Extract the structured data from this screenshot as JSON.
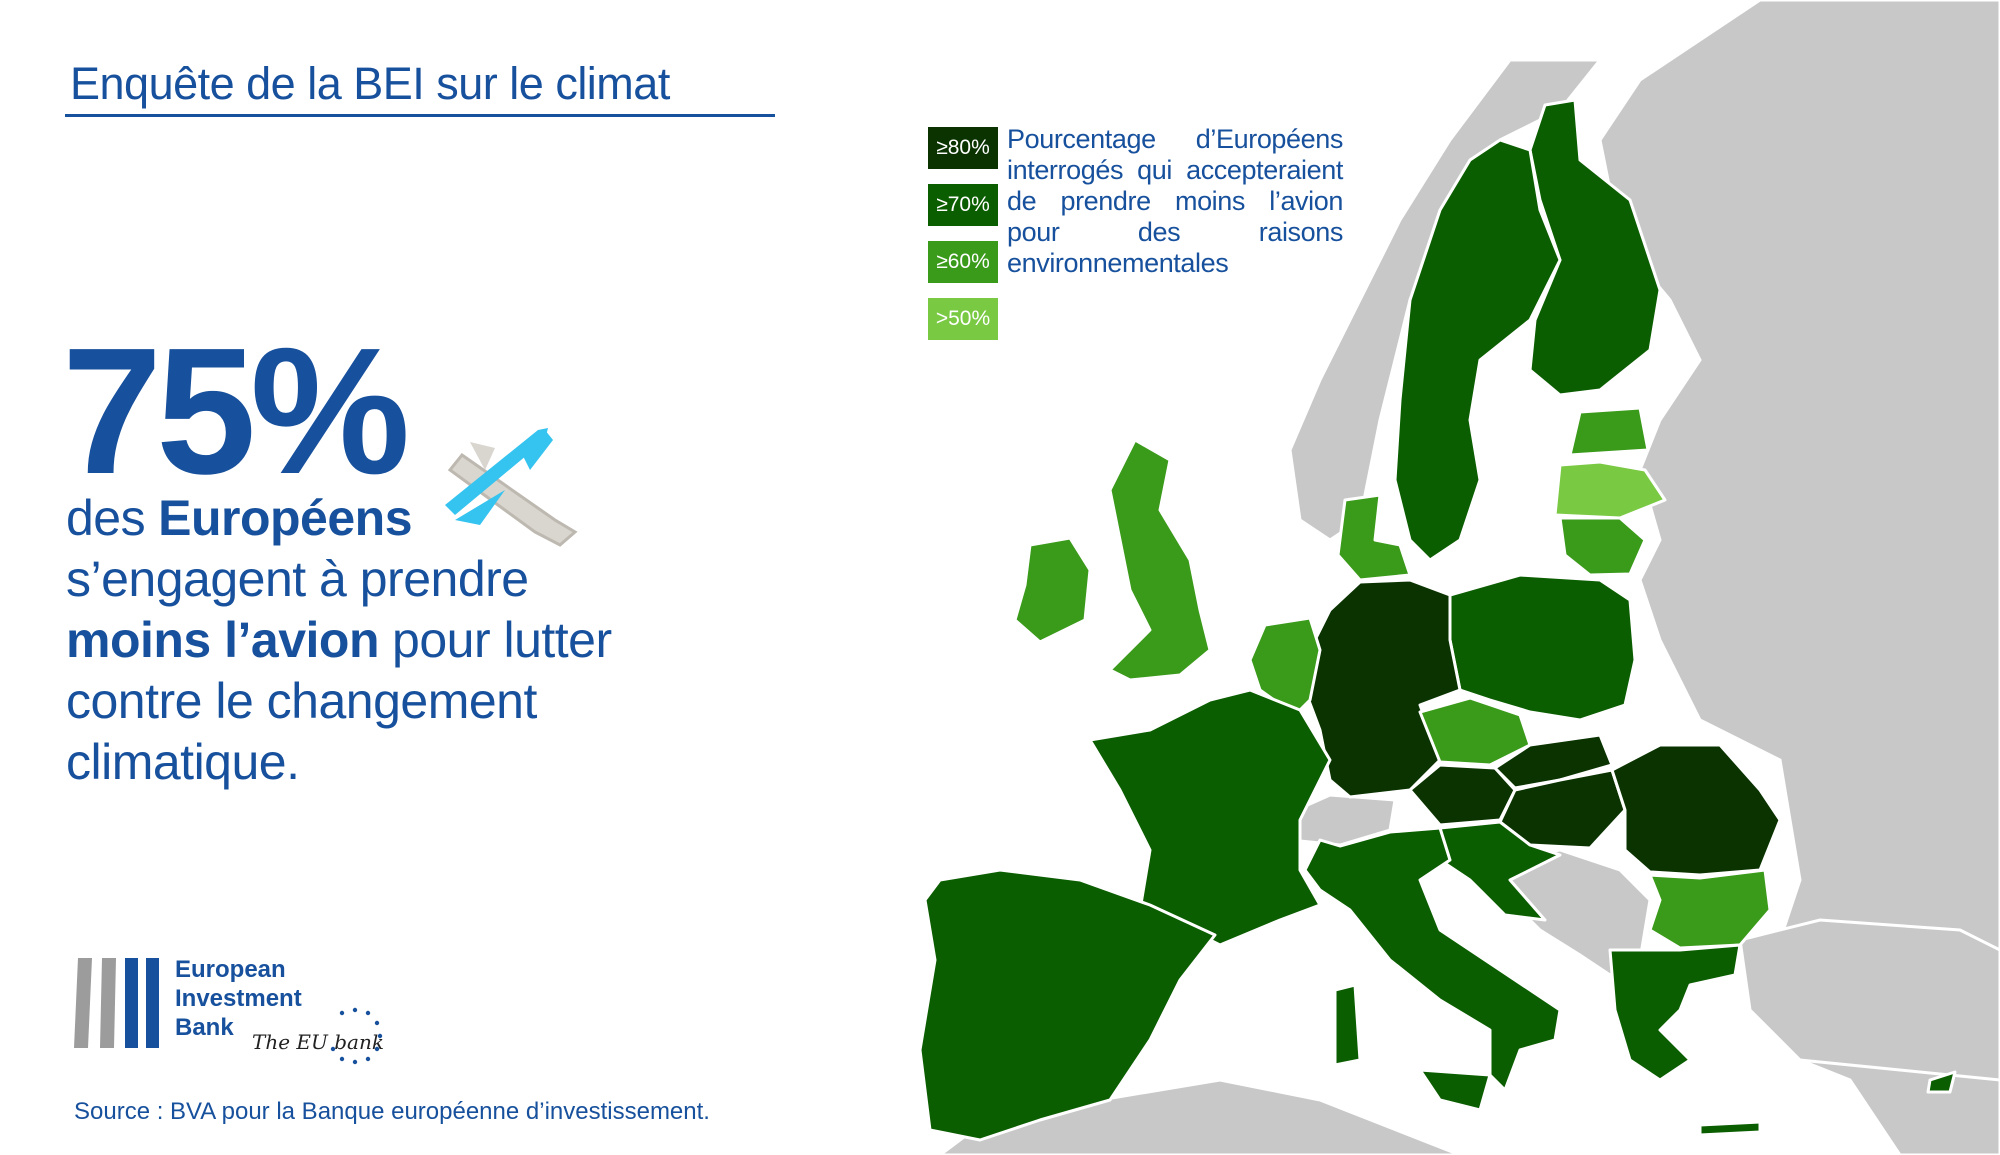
{
  "header": {
    "title": "Enquête de la BEI sur le climat"
  },
  "headline": {
    "figure": "75%",
    "lines": [
      [
        {
          "text": "des",
          "bold": false
        },
        {
          "text": "Européens",
          "bold": true
        }
      ],
      [
        {
          "text": "s’engagent à prendre",
          "bold": false
        }
      ],
      [
        {
          "text": "moins l’avion",
          "bold": true
        },
        {
          "text": "pour lutter",
          "bold": false
        }
      ],
      [
        {
          "text": "contre le changement",
          "bold": false
        }
      ],
      [
        {
          "text": "climatique.",
          "bold": false
        }
      ]
    ]
  },
  "legend": {
    "description": "Pourcentage d’Européens interrogés qui accepteraient de prendre moins l’avion pour des raisons environnementales",
    "items": [
      {
        "label": "≥80%",
        "color": "#0a3300"
      },
      {
        "label": "≥70%",
        "color": "#0b5e00"
      },
      {
        "label": "≥60%",
        "color": "#3a9a1a"
      },
      {
        "label": ">50%",
        "color": "#7ac943"
      }
    ]
  },
  "logo": {
    "lines": [
      "European",
      "Investment",
      "Bank"
    ],
    "tagline": "The EU bank"
  },
  "source": "Source : BVA pour la Banque européenne d’investissement."
}
